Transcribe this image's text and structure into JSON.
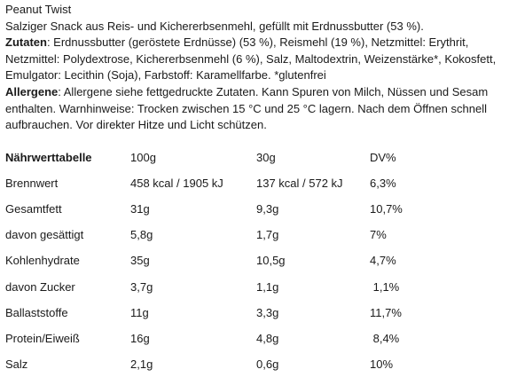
{
  "product": {
    "name": "Peanut Twist",
    "description": "Salziger Snack aus Reis- und Kichererbsenmehl, gefüllt mit Erdnussbutter (53 %)."
  },
  "ingredients": {
    "label": "Zutaten",
    "line1": ": Erdnussbutter (geröstete Erdnüsse) (53 %), Reismehl (19 %), Netzmittel: Erythrit,",
    "line2": "Netzmittel: Polydextrose, Kichererbsenmehl (6 %), Salz, Maltodextrin, Weizenstärke*, Kokosfett,",
    "line3": "Emulgator: Lecithin (Soja), Farbstoff: Karamellfarbe. *glutenfrei"
  },
  "allergens": {
    "label": "Allergene",
    "line1": ": Allergene siehe fettgedruckte Zutaten. Kann Spuren von Milch, Nüssen und Sesam",
    "line2": "enthalten. Warnhinweise: Trocken zwischen 15 °C und 25 °C lagern. Nach dem Öffnen schnell",
    "line3": "aufbrauchen. Vor direkter Hitze und Licht schützen."
  },
  "nutrition": {
    "header": [
      "Nährwerttabelle",
      "100g",
      "30g",
      "DV%"
    ],
    "rows": [
      [
        "Brennwert",
        "458 kcal / 1905 kJ",
        "137 kcal / 572 kJ",
        "6,3%"
      ],
      [
        "Gesamtfett",
        "31g",
        "9,3g",
        "10,7%"
      ],
      [
        "davon gesättigt",
        "5,8g",
        "1,7g",
        "7%"
      ],
      [
        "Kohlenhydrate",
        "35g",
        "10,5g",
        "4,7%"
      ],
      [
        "davon Zucker",
        "3,7g",
        "1,1g",
        " 1,1%"
      ],
      [
        "Ballaststoffe",
        "11g",
        "3,3g",
        "11,7%"
      ],
      [
        "Protein/Eiweiß",
        "16g",
        "4,8g",
        " 8,4%"
      ],
      [
        "Salz",
        "2,1g",
        "0,6g",
        "10%"
      ]
    ]
  }
}
